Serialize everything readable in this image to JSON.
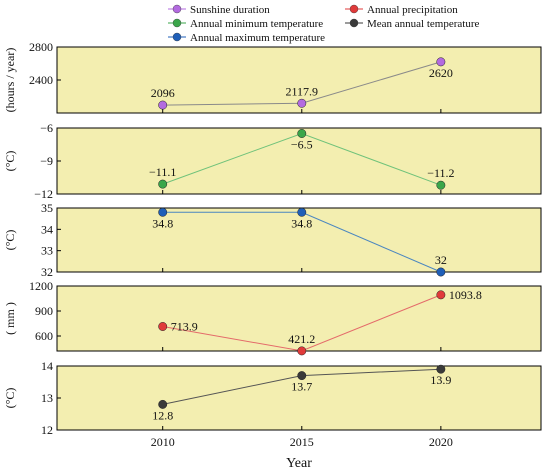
{
  "chart_data": [
    {
      "type": "line",
      "x": [
        2010,
        2015,
        2020
      ],
      "series": [
        {
          "name": "Sunshine duration",
          "values": [
            2096,
            2117.9,
            2620
          ],
          "color": "#8a8a8a",
          "marker": "#b36ae0"
        }
      ],
      "ylabel": "(hours / year)",
      "ylim": [
        2000,
        2800
      ],
      "yticks": [
        2000,
        2400,
        2800
      ],
      "ytick_labels": [
        "",
        "2400",
        "2800"
      ],
      "point_labels": [
        "2096",
        "2117.9",
        "2620"
      ],
      "label_pos": [
        "above",
        "above",
        "below"
      ],
      "background": "#f3eeb0"
    },
    {
      "type": "line",
      "x": [
        2010,
        2015,
        2020
      ],
      "series": [
        {
          "name": "Annual minimum temperature",
          "values": [
            -11.1,
            -6.5,
            -11.2
          ],
          "color": "#6fc27a",
          "marker": "#3aa64a"
        }
      ],
      "ylabel": "(°C)",
      "ylim": [
        -12,
        -6
      ],
      "yticks": [
        -12,
        -9,
        -6
      ],
      "ytick_labels": [
        "−12",
        "−9",
        "−6"
      ],
      "point_labels": [
        "−11.1",
        "−6.5",
        "−11.2"
      ],
      "label_pos": [
        "above",
        "below",
        "above"
      ],
      "background": "#f3eeb0"
    },
    {
      "type": "line",
      "x": [
        2010,
        2015,
        2020
      ],
      "series": [
        {
          "name": "Annual maximum temperature",
          "values": [
            34.8,
            34.8,
            32
          ],
          "color": "#4a86c0",
          "marker": "#1f5fb8"
        }
      ],
      "ylabel": "(°C)",
      "ylim": [
        32,
        35
      ],
      "yticks": [
        32,
        33,
        34,
        35
      ],
      "ytick_labels": [
        "32",
        "33",
        "34",
        "35"
      ],
      "point_labels": [
        "34.8",
        "34.8",
        "32"
      ],
      "label_pos": [
        "below",
        "below",
        "above"
      ],
      "background": "#f3eeb0"
    },
    {
      "type": "line",
      "x": [
        2010,
        2015,
        2020
      ],
      "series": [
        {
          "name": "Annual precipitation",
          "values": [
            713.9,
            421.2,
            1093.8
          ],
          "color": "#e46a6a",
          "marker": "#e03a3a"
        }
      ],
      "ylabel": "( mm )",
      "ylim": [
        420,
        1200
      ],
      "yticks": [
        600,
        900,
        1200
      ],
      "ytick_labels": [
        "600",
        "900",
        "1200"
      ],
      "point_labels": [
        "713.9",
        "421.2",
        "1093.8"
      ],
      "label_pos": [
        "right",
        "above",
        "right"
      ],
      "background": "#f3eeb0"
    },
    {
      "type": "line",
      "x": [
        2010,
        2015,
        2020
      ],
      "series": [
        {
          "name": "Mean annual temperature",
          "values": [
            12.8,
            13.7,
            13.9
          ],
          "color": "#555555",
          "marker": "#3a3a3a"
        }
      ],
      "ylabel": "(°C)",
      "ylim": [
        12,
        14
      ],
      "yticks": [
        12,
        13,
        14
      ],
      "ytick_labels": [
        "12",
        "13",
        "14"
      ],
      "point_labels": [
        "12.8",
        "13.7",
        "13.9"
      ],
      "label_pos": [
        "below",
        "below",
        "below"
      ],
      "background": "#f3eeb0"
    }
  ],
  "legend": {
    "placement": "top",
    "items": [
      {
        "label": "Sunshine duration",
        "color": "#b36ae0"
      },
      {
        "label": "Annual precipitation",
        "color": "#e03a3a"
      },
      {
        "label": "Annual minimum temperature",
        "color": "#3aa64a"
      },
      {
        "label": "Mean annual temperature",
        "color": "#3a3a3a"
      },
      {
        "label": "Annual maximum temperature",
        "color": "#1f5fb8"
      }
    ]
  },
  "xaxis": {
    "label": "Year",
    "ticks": [
      2010,
      2015,
      2020
    ],
    "range": [
      2006.2,
      2023.6
    ]
  }
}
